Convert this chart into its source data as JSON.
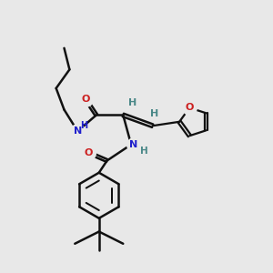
{
  "background_color": "#e8e8e8",
  "atom_colors": {
    "N": "#2020cc",
    "O": "#cc2020",
    "H": "#4a8888",
    "C": "#000000"
  },
  "bond_color": "#111111",
  "bond_width": 1.8,
  "figsize": [
    3.0,
    3.0
  ],
  "dpi": 100
}
